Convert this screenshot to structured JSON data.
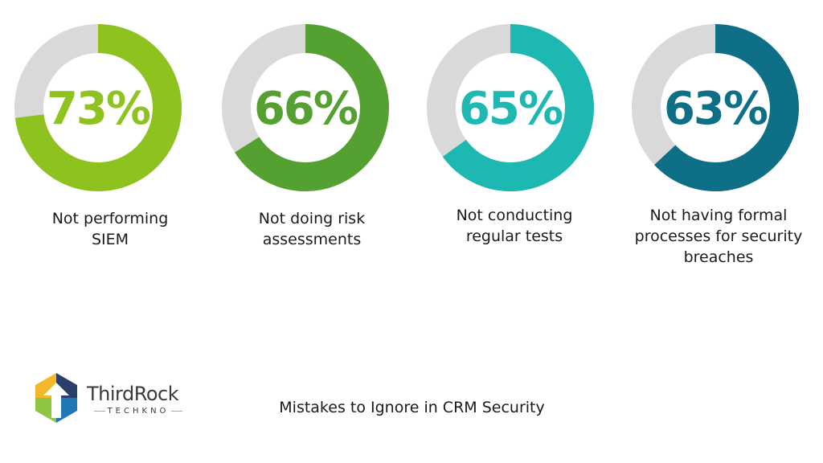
{
  "chart_data": [
    {
      "type": "pie",
      "value": 73,
      "label": "73%",
      "caption": [
        "Not performing",
        "SIEM"
      ],
      "color": "#8dc21f",
      "track_color": "#d9d9d9"
    },
    {
      "type": "pie",
      "value": 66,
      "label": "66%",
      "caption": [
        "Not doing risk",
        "assessments"
      ],
      "color": "#54a031",
      "track_color": "#d9d9d9"
    },
    {
      "type": "pie",
      "value": 65,
      "label": "65%",
      "caption": [
        "Not conducting",
        "regular tests"
      ],
      "color": "#1cb8b1",
      "track_color": "#d9d9d9"
    },
    {
      "type": "pie",
      "value": 63,
      "label": "63%",
      "caption": [
        "Not having formal",
        "processes for security",
        "breaches"
      ],
      "color": "#0f6f86",
      "track_color": "#d9d9d9"
    }
  ],
  "footer": {
    "title": "Mistakes to Ignore in CRM Security"
  },
  "logo": {
    "name": "ThirdRock",
    "subtitle": "TECHKNO",
    "colors": {
      "yellow": "#f2b82a",
      "green": "#8ec63f",
      "blue": "#1f78b4",
      "navy": "#2a3f6b"
    }
  }
}
